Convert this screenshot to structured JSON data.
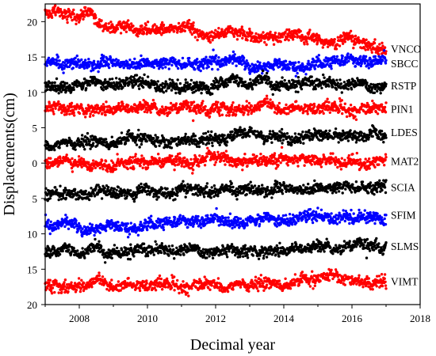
{
  "chart_data": {
    "type": "scatter",
    "title": "",
    "xlabel": "Decimal year",
    "ylabel": "Displacements(cm)",
    "xlim": [
      2007,
      2018
    ],
    "ylim": [
      -20,
      22.5
    ],
    "x_ticks": [
      2008,
      2010,
      2012,
      2014,
      2016,
      2018
    ],
    "y_ticks": [
      {
        "value": 20,
        "label": "20"
      },
      {
        "value": 15,
        "label": "15"
      },
      {
        "value": 10,
        "label": "10"
      },
      {
        "value": 5,
        "label": "5"
      },
      {
        "value": 0,
        "label": "0"
      },
      {
        "value": -5,
        "label": "5"
      },
      {
        "value": -10,
        "label": "10"
      },
      {
        "value": -15,
        "label": "15"
      },
      {
        "value": -20,
        "label": "20"
      }
    ],
    "grid": false,
    "series": [
      {
        "name": "VNCO",
        "color": "#ff0000",
        "x": [
          2007.0,
          2008.3,
          2008.5,
          2010.0,
          2012.0,
          2013.0,
          2014.0,
          2015.0,
          2016.0,
          2017.0
        ],
        "y": [
          21.5,
          21.0,
          19.8,
          19.0,
          18.3,
          18.3,
          18.0,
          17.5,
          16.8,
          16.2
        ]
      },
      {
        "name": "SBCC",
        "color": "#0000ff",
        "x": [
          2007.0,
          2009.0,
          2011.0,
          2013.0,
          2015.0,
          2017.0
        ],
        "y": [
          14.0,
          14.1,
          14.0,
          14.1,
          14.0,
          14.1
        ]
      },
      {
        "name": "RSTP",
        "color": "#000000",
        "x": [
          2007.0,
          2009.0,
          2011.0,
          2013.0,
          2015.0,
          2017.0
        ],
        "y": [
          11.1,
          11.3,
          11.1,
          11.2,
          11.2,
          11.0
        ]
      },
      {
        "name": "PIN1",
        "color": "#ff0000",
        "x": [
          2007.0,
          2009.0,
          2011.0,
          2013.0,
          2015.0,
          2017.0
        ],
        "y": [
          7.8,
          7.8,
          7.6,
          7.8,
          7.8,
          7.7
        ]
      },
      {
        "name": "LDES",
        "color": "#000000",
        "x": [
          2007.0,
          2009.0,
          2011.0,
          2013.0,
          2015.0,
          2017.0
        ],
        "y": [
          2.8,
          3.1,
          3.3,
          3.7,
          4.0,
          4.4
        ]
      },
      {
        "name": "MAT2",
        "color": "#ff0000",
        "x": [
          2007.0,
          2009.0,
          2011.0,
          2013.0,
          2015.0,
          2017.0
        ],
        "y": [
          0.0,
          0.1,
          0.1,
          0.2,
          0.2,
          0.3
        ]
      },
      {
        "name": "SCIA",
        "color": "#000000",
        "x": [
          2007.0,
          2009.0,
          2011.0,
          2013.0,
          2015.0,
          2017.0
        ],
        "y": [
          -4.3,
          -4.1,
          -4.0,
          -3.8,
          -3.6,
          -3.4
        ]
      },
      {
        "name": "SFIM",
        "color": "#0000ff",
        "x": [
          2007.0,
          2009.0,
          2011.0,
          2012.5,
          2014.0,
          2016.0,
          2017.0
        ],
        "y": [
          -9.1,
          -8.7,
          -8.8,
          -8.0,
          -8.0,
          -7.3,
          -7.3
        ]
      },
      {
        "name": "SLMS",
        "color": "#000000",
        "x": [
          2007.0,
          2009.0,
          2011.0,
          2013.0,
          2015.0,
          2017.0
        ],
        "y": [
          -12.9,
          -12.5,
          -12.3,
          -12.3,
          -12.0,
          -11.7
        ]
      },
      {
        "name": "VIMT",
        "color": "#ff0000",
        "x": [
          2007.0,
          2009.0,
          2011.0,
          2013.0,
          2015.0,
          2015.4,
          2015.8,
          2016.3,
          2017.0
        ],
        "y": [
          -17.3,
          -17.2,
          -17.2,
          -17.1,
          -16.8,
          -15.5,
          -16.1,
          -16.8,
          -16.7
        ]
      }
    ]
  }
}
